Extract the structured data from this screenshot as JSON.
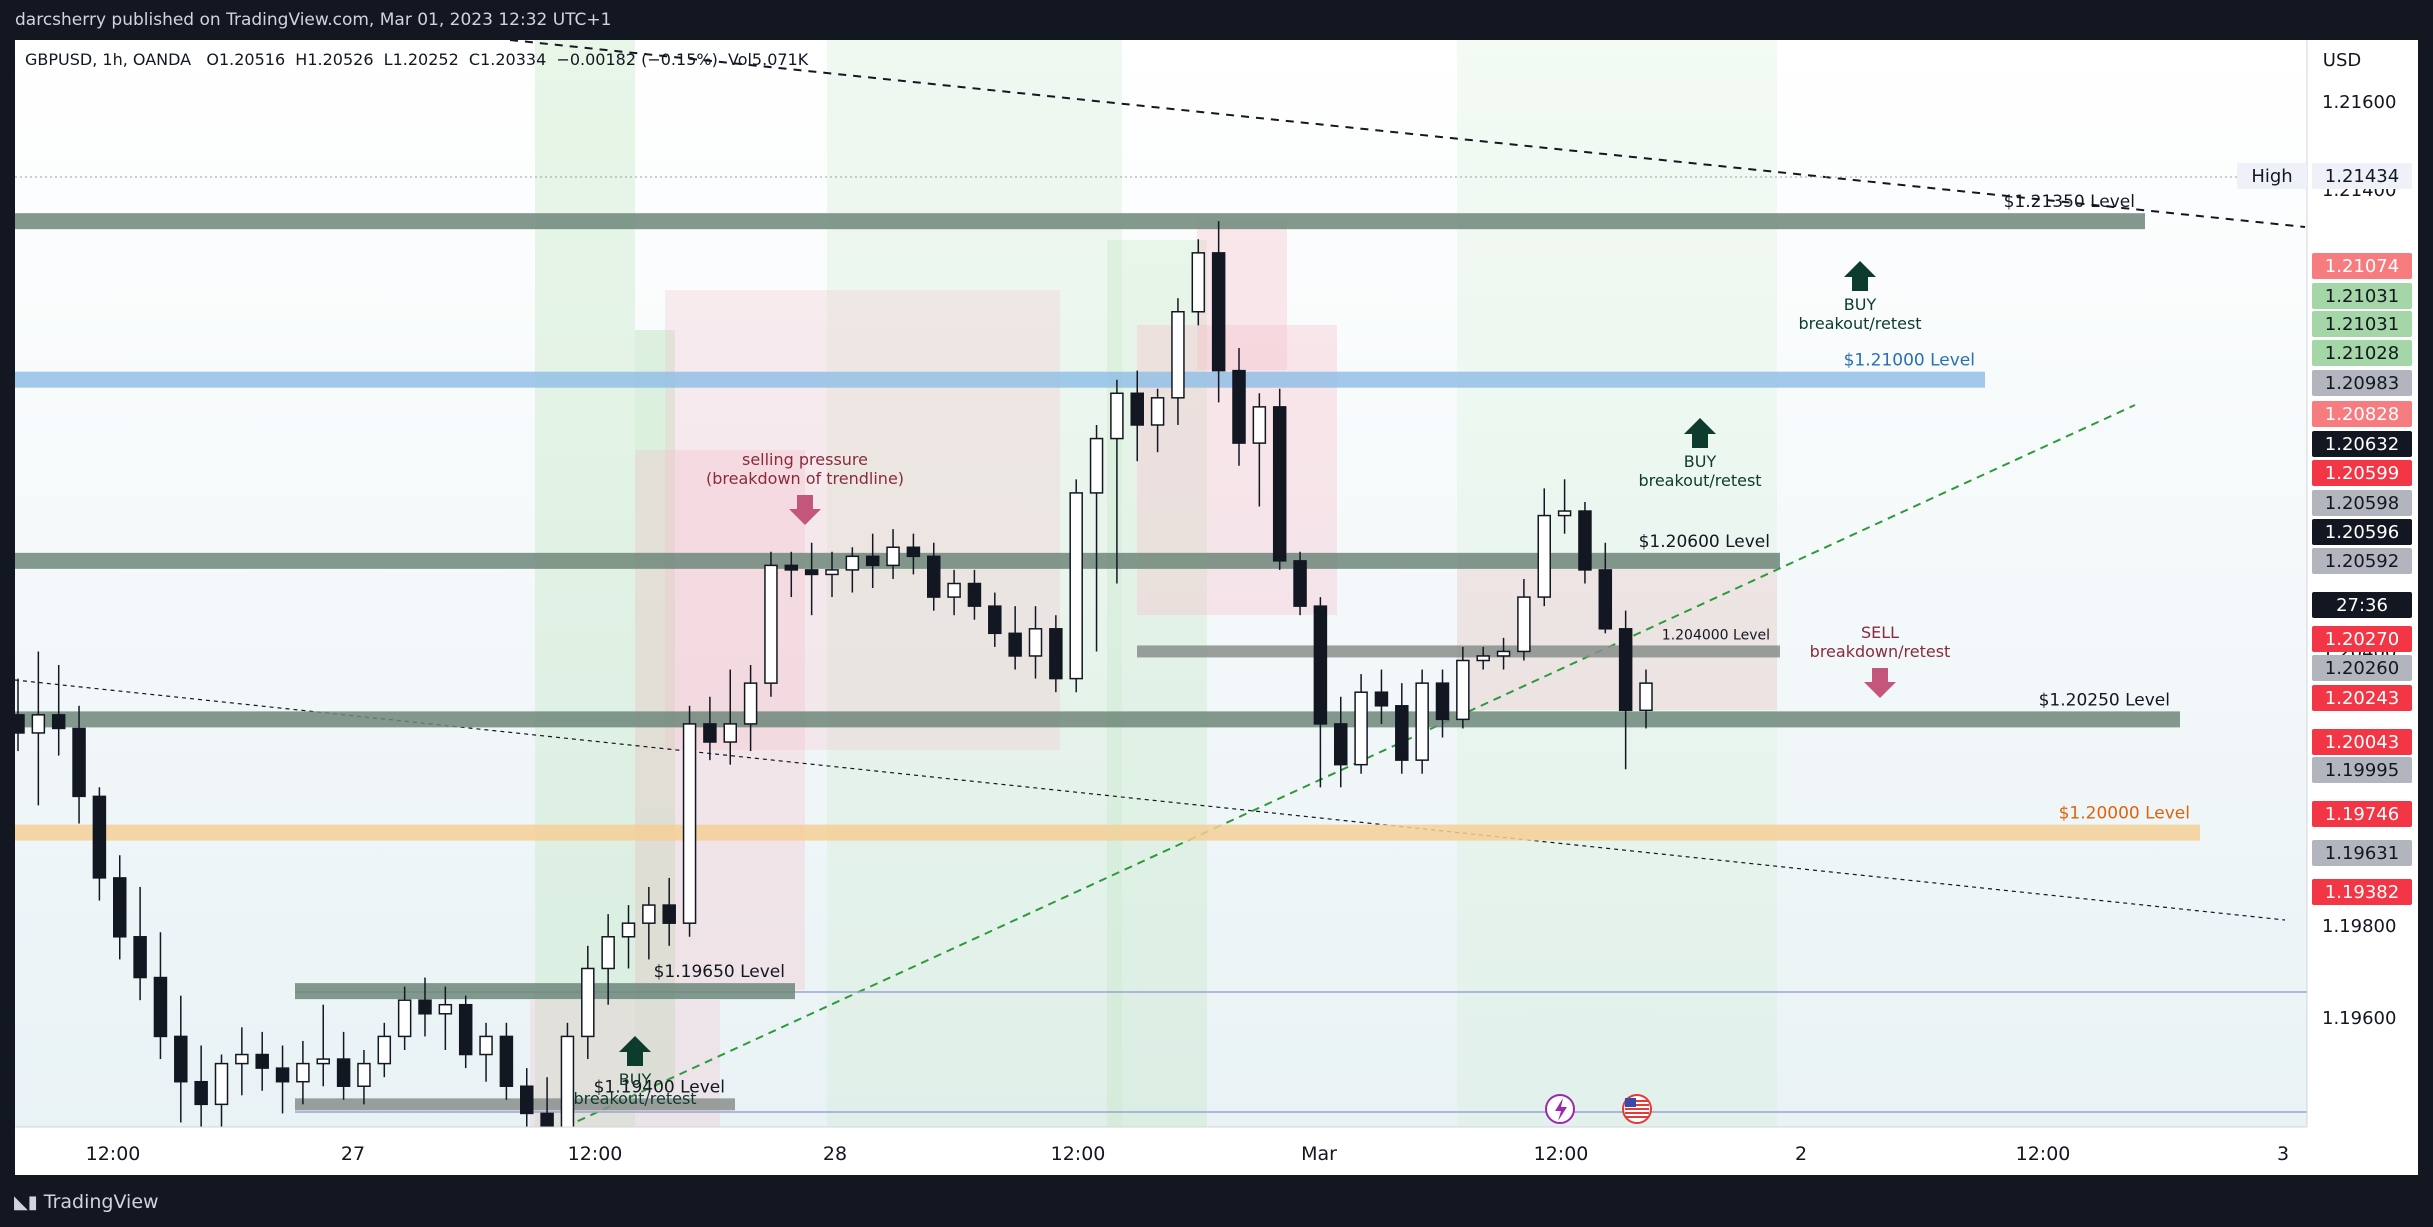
{
  "header": {
    "publisher": "darcsherry published on TradingView.com, Mar 01, 2023 12:32 UTC+1"
  },
  "legend": {
    "symbol": "GBPUSD, 1h, OANDA",
    "open": "O1.20516",
    "high": "H1.20526",
    "low": "L1.20252",
    "close": "C1.20334",
    "change": "−0.00182 (−0.15%)",
    "volume": "Vol5.071K"
  },
  "footer": {
    "brand": "TradingView"
  },
  "chart_data": {
    "type": "candlestick",
    "currency": "USD",
    "y_range": [
      1.1935,
      1.2175
    ],
    "x_labels": [
      "12:00",
      "27",
      "12:00",
      "28",
      "12:00",
      "Mar",
      "12:00",
      "2",
      "12:00",
      "3"
    ],
    "y_ticks": [
      "1.21600",
      "1.21400",
      "1.20400",
      "1.19800",
      "1.19600"
    ],
    "candles": [
      [
        1.2026,
        1.2034,
        1.2018,
        1.2022
      ],
      [
        1.2022,
        1.204,
        1.2006,
        1.2026
      ],
      [
        1.2026,
        1.2037,
        1.2017,
        1.2023
      ],
      [
        1.2023,
        1.2028,
        1.2002,
        1.2008
      ],
      [
        1.2008,
        1.201,
        1.1985,
        1.199
      ],
      [
        1.199,
        1.1995,
        1.1972,
        1.1977
      ],
      [
        1.1977,
        1.1988,
        1.1963,
        1.1968
      ],
      [
        1.1968,
        1.1978,
        1.195,
        1.1955
      ],
      [
        1.1955,
        1.1964,
        1.1936,
        1.1945
      ],
      [
        1.1945,
        1.1953,
        1.1933,
        1.194
      ],
      [
        1.194,
        1.1951,
        1.1934,
        1.1949
      ],
      [
        1.1949,
        1.1957,
        1.1942,
        1.1951
      ],
      [
        1.1951,
        1.1956,
        1.1943,
        1.1948
      ],
      [
        1.1948,
        1.1953,
        1.1938,
        1.1945
      ],
      [
        1.1945,
        1.1954,
        1.194,
        1.1949
      ],
      [
        1.1949,
        1.1962,
        1.1944,
        1.195
      ],
      [
        1.195,
        1.1956,
        1.1941,
        1.1944
      ],
      [
        1.1944,
        1.1952,
        1.194,
        1.1949
      ],
      [
        1.1949,
        1.1958,
        1.1946,
        1.1955
      ],
      [
        1.1955,
        1.1966,
        1.1952,
        1.1963
      ],
      [
        1.1963,
        1.1968,
        1.1955,
        1.196
      ],
      [
        1.196,
        1.1966,
        1.1952,
        1.1962
      ],
      [
        1.1962,
        1.1964,
        1.1948,
        1.1951
      ],
      [
        1.1951,
        1.1958,
        1.1945,
        1.1955
      ],
      [
        1.1955,
        1.1958,
        1.1941,
        1.1944
      ],
      [
        1.1944,
        1.1948,
        1.1934,
        1.1938
      ],
      [
        1.1938,
        1.1946,
        1.1932,
        1.1934
      ],
      [
        1.1934,
        1.1958,
        1.193,
        1.1955
      ],
      [
        1.1955,
        1.1975,
        1.195,
        1.197
      ],
      [
        1.197,
        1.1982,
        1.1962,
        1.1977
      ],
      [
        1.1977,
        1.1984,
        1.197,
        1.198
      ],
      [
        1.198,
        1.1988,
        1.1972,
        1.1984
      ],
      [
        1.1984,
        1.199,
        1.1975,
        1.198
      ],
      [
        1.198,
        1.2028,
        1.1977,
        1.2024
      ],
      [
        1.2024,
        1.203,
        1.2016,
        1.202
      ],
      [
        1.202,
        1.2036,
        1.2015,
        1.2024
      ],
      [
        1.2024,
        1.2037,
        1.2018,
        1.2033
      ],
      [
        1.2033,
        1.2062,
        1.203,
        1.2059
      ],
      [
        1.2059,
        1.2062,
        1.2052,
        1.2058
      ],
      [
        1.2058,
        1.2064,
        1.2048,
        1.2057
      ],
      [
        1.2057,
        1.2062,
        1.2052,
        1.2058
      ],
      [
        1.2058,
        1.2063,
        1.2053,
        1.2061
      ],
      [
        1.2061,
        1.2066,
        1.2054,
        1.2059
      ],
      [
        1.2059,
        1.2067,
        1.2056,
        1.2063
      ],
      [
        1.2063,
        1.2066,
        1.2057,
        1.2061
      ],
      [
        1.2061,
        1.2064,
        1.2049,
        1.2052
      ],
      [
        1.2052,
        1.2058,
        1.2048,
        1.2055
      ],
      [
        1.2055,
        1.2058,
        1.2047,
        1.205
      ],
      [
        1.205,
        1.2053,
        1.2041,
        1.2044
      ],
      [
        1.2044,
        1.205,
        1.2036,
        1.2039
      ],
      [
        1.2039,
        1.205,
        1.2034,
        1.2045
      ],
      [
        1.2045,
        1.2048,
        1.2031,
        1.2034
      ],
      [
        1.2034,
        1.2078,
        1.2031,
        1.2075
      ],
      [
        1.2075,
        1.209,
        1.204,
        1.2087
      ],
      [
        1.2087,
        1.21,
        1.2055,
        1.2097
      ],
      [
        1.2097,
        1.2102,
        1.2082,
        1.209
      ],
      [
        1.209,
        1.2098,
        1.2084,
        1.2096
      ],
      [
        1.2096,
        1.2118,
        1.209,
        1.2115
      ],
      [
        1.2115,
        1.2131,
        1.2112,
        1.2128
      ],
      [
        1.2128,
        1.2135,
        1.2095,
        1.2102
      ],
      [
        1.2102,
        1.2107,
        1.2081,
        1.2086
      ],
      [
        1.2086,
        1.2097,
        1.2072,
        1.2094
      ],
      [
        1.2094,
        1.2098,
        1.2058,
        1.206
      ],
      [
        1.206,
        1.2062,
        1.2048,
        1.205
      ],
      [
        1.205,
        1.2052,
        1.201,
        1.2024
      ],
      [
        1.2024,
        1.203,
        1.201,
        1.2015
      ],
      [
        1.2015,
        1.2035,
        1.2013,
        1.2031
      ],
      [
        1.2031,
        1.2036,
        1.2024,
        1.2028
      ],
      [
        1.2028,
        1.2033,
        1.2013,
        1.2016
      ],
      [
        1.2016,
        1.2036,
        1.2013,
        1.2033
      ],
      [
        1.2033,
        1.2036,
        1.2021,
        1.2025
      ],
      [
        1.2025,
        1.2041,
        1.2023,
        1.2038
      ],
      [
        1.2038,
        1.2041,
        1.2036,
        1.2039
      ],
      [
        1.2039,
        1.2043,
        1.2036,
        1.204
      ],
      [
        1.204,
        1.2056,
        1.2038,
        1.2052
      ],
      [
        1.2052,
        1.2076,
        1.205,
        1.207
      ],
      [
        1.207,
        1.2078,
        1.2066,
        1.2071
      ],
      [
        1.2071,
        1.2073,
        1.2055,
        1.2058
      ],
      [
        1.2058,
        1.2064,
        1.2044,
        1.2045
      ],
      [
        1.2045,
        1.2049,
        1.2014,
        1.2027
      ],
      [
        1.2027,
        1.2036,
        1.2023,
        1.2033
      ]
    ],
    "levels": [
      {
        "label": "$1.21350 Level",
        "price": 1.2135,
        "color": "#6f877a"
      },
      {
        "label": "$1.21000 Level",
        "price": 1.21,
        "color": "#93bfe6"
      },
      {
        "label": "$1.20600 Level",
        "price": 1.206,
        "color": "#6f877a"
      },
      {
        "label": "1.204000 Level",
        "price": 1.204,
        "color": "#8a8f8c"
      },
      {
        "label": "$1.20250 Level",
        "price": 1.2025,
        "color": "#6f877a"
      },
      {
        "label": "$1.20000 Level",
        "price": 1.2,
        "color": "#f5cf96"
      },
      {
        "label": "$1.19650 Level",
        "price": 1.1965,
        "color": "#6f877a"
      },
      {
        "label": "$1.19400 Level",
        "price": 1.194,
        "color": "#8a8f8c"
      }
    ],
    "annotations": [
      {
        "title": "selling pressure",
        "subtitle": "(breakdown of trendline)",
        "arrow": "down",
        "color": "#8b2a3a"
      },
      {
        "title": "BUY",
        "subtitle": "breakout/retest",
        "arrow": "up",
        "color": "#0d3b2e"
      },
      {
        "title": "BUY",
        "subtitle": "breakout/retest",
        "arrow": "up",
        "color": "#0d3b2e"
      },
      {
        "title": "BUY",
        "subtitle": "breakout/retest",
        "arrow": "up",
        "color": "#0d3b2e"
      },
      {
        "title": "SELL",
        "subtitle": "breakdown/retest",
        "arrow": "down",
        "color": "#8b2a3a"
      }
    ],
    "price_tags": [
      {
        "label": "High",
        "value": "1.21434",
        "bg": "#eef2f8",
        "fg": "#131722"
      },
      {
        "value": "1.21074",
        "bg": "#f77c80",
        "fg": "#ffffff"
      },
      {
        "value": "1.21031",
        "bg": "#a5d6a7",
        "fg": "#131722"
      },
      {
        "value": "1.21031",
        "bg": "#a5d6a7",
        "fg": "#131722"
      },
      {
        "value": "1.21028",
        "bg": "#a5d6a7",
        "fg": "#131722"
      },
      {
        "value": "1.20983",
        "bg": "#b2b5be",
        "fg": "#131722"
      },
      {
        "value": "1.20828",
        "bg": "#f77c80",
        "fg": "#ffffff"
      },
      {
        "value": "1.20632",
        "bg": "#131722",
        "fg": "#ffffff"
      },
      {
        "value": "1.20599",
        "bg": "#f23645",
        "fg": "#ffffff"
      },
      {
        "value": "1.20598",
        "bg": "#b2b5be",
        "fg": "#131722"
      },
      {
        "value": "1.20596",
        "bg": "#131722",
        "fg": "#ffffff"
      },
      {
        "value": "1.20592",
        "bg": "#b2b5be",
        "fg": "#131722"
      },
      {
        "value": "27:36",
        "bg": "#131722",
        "fg": "#ffffff"
      },
      {
        "value": "1.20270",
        "bg": "#f23645",
        "fg": "#ffffff"
      },
      {
        "value": "1.20260",
        "bg": "#b2b5be",
        "fg": "#131722"
      },
      {
        "value": "1.20243",
        "bg": "#f23645",
        "fg": "#ffffff"
      },
      {
        "value": "1.20043",
        "bg": "#f23645",
        "fg": "#ffffff"
      },
      {
        "value": "1.19995",
        "bg": "#b2b5be",
        "fg": "#131722"
      },
      {
        "value": "1.19746",
        "bg": "#f23645",
        "fg": "#ffffff"
      },
      {
        "value": "1.19631",
        "bg": "#b2b5be",
        "fg": "#131722"
      },
      {
        "value": "1.19382",
        "bg": "#f23645",
        "fg": "#ffffff"
      }
    ]
  }
}
